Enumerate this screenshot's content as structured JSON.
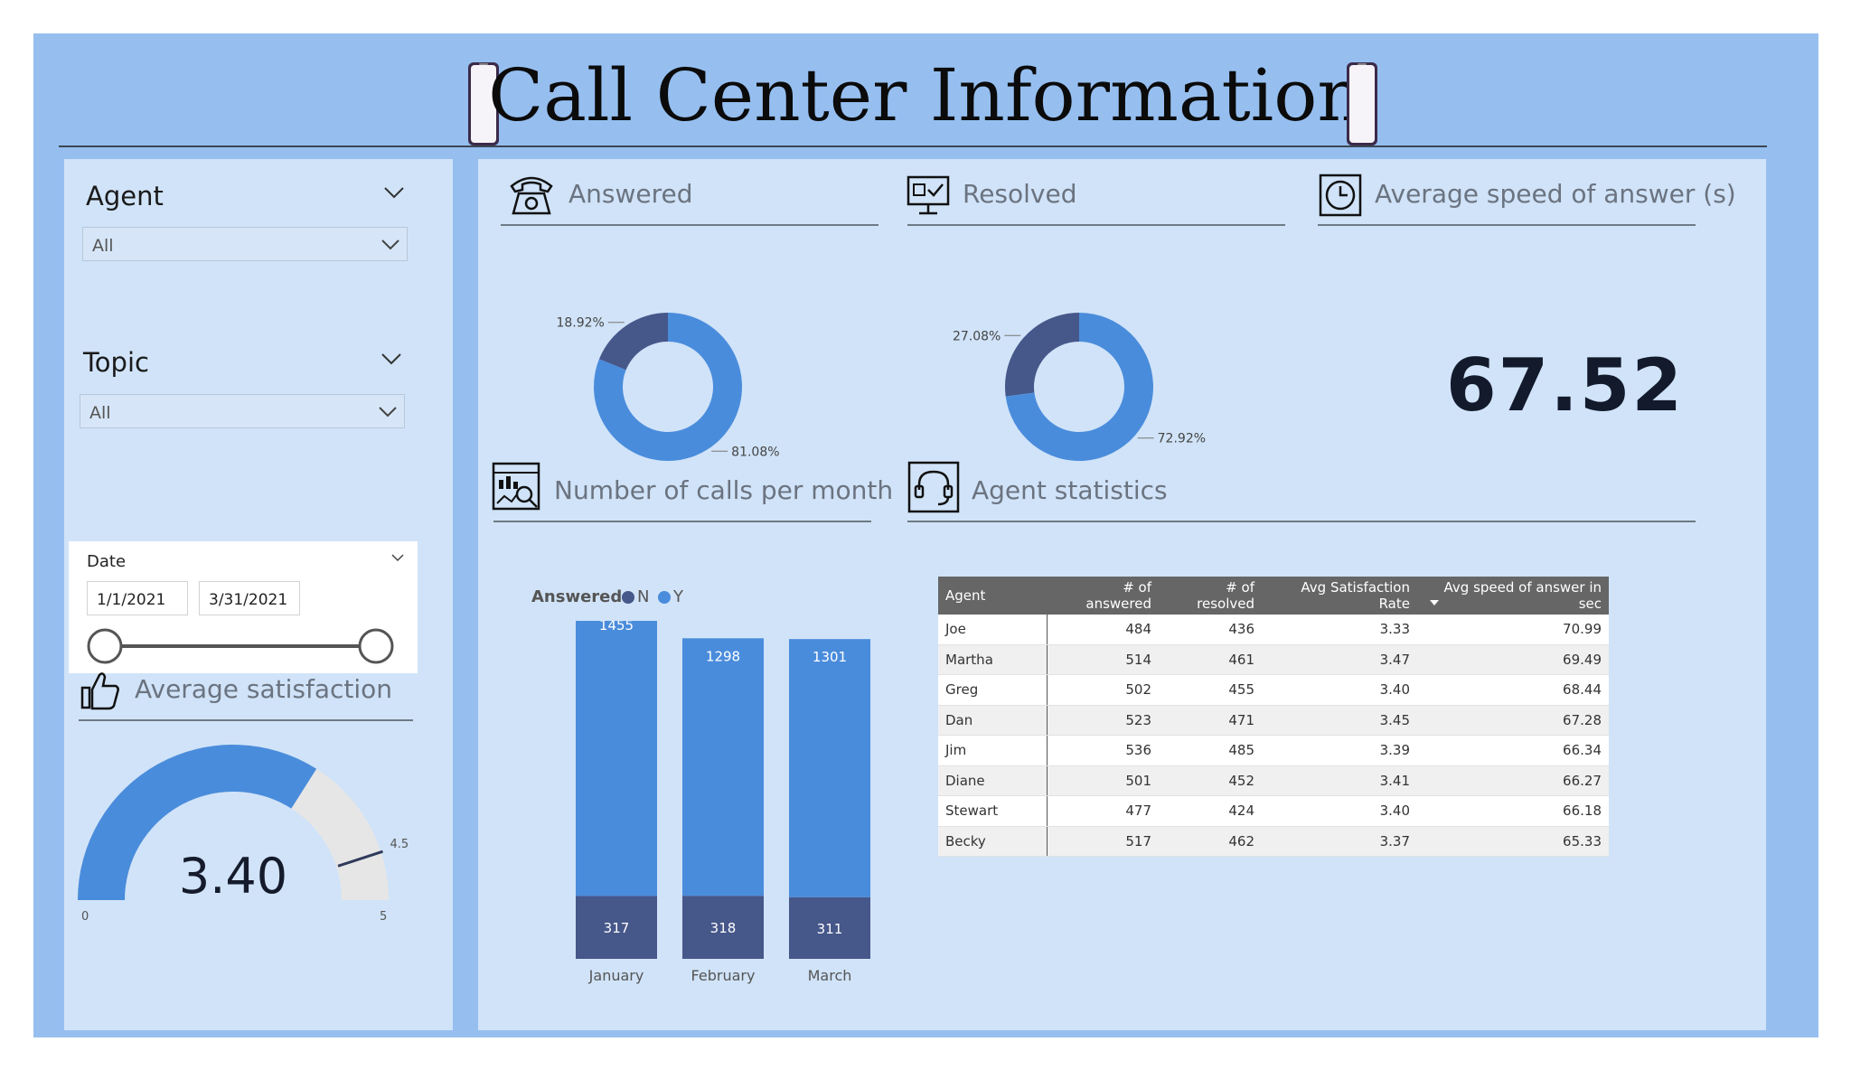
{
  "page": {
    "title": "Call Center Information"
  },
  "colors": {
    "background": "#96bff0",
    "panel": "#d0e3f8",
    "series_y": "#4a8cdc",
    "series_n": "#46578a",
    "gauge_rest": "#e6e6e6"
  },
  "slicers": {
    "agent": {
      "title": "Agent",
      "value": "All"
    },
    "topic": {
      "title": "Topic",
      "value": "All"
    },
    "date": {
      "title": "Date",
      "from": "1/1/2021",
      "to": "3/31/2021"
    }
  },
  "sections": {
    "answered": {
      "title": "Answered",
      "icon": "telephone-icon"
    },
    "resolved": {
      "title": "Resolved",
      "icon": "monitor-check-icon"
    },
    "avg_speed": {
      "title": "Average speed of answer (s)",
      "icon": "clock-icon",
      "value": "67.52"
    },
    "calls_per_month": {
      "title": "Number of calls per month",
      "icon": "analytics-icon"
    },
    "agent_stats": {
      "title": "Agent statistics",
      "icon": "headset-icon"
    },
    "avg_satisfaction": {
      "title": "Average satisfaction",
      "icon": "thumbs-up-icon"
    }
  },
  "chart_data": [
    {
      "type": "pie",
      "variant": "donut",
      "labels": [
        "N",
        "Y"
      ],
      "values": [
        18.92,
        81.08
      ],
      "value_labels": [
        "18.92%",
        "81.08%"
      ]
    },
    {
      "type": "pie",
      "variant": "donut",
      "labels": [
        "N",
        "Y"
      ],
      "values": [
        27.08,
        72.92
      ],
      "value_labels": [
        "27.08%",
        "72.92%"
      ]
    },
    {
      "type": "bar",
      "stacked": true,
      "categories": [
        "January",
        "February",
        "March"
      ],
      "legend_title": "Answered",
      "legend_position": "top-left",
      "series": [
        {
          "name": "N",
          "values": [
            317,
            318,
            311
          ]
        },
        {
          "name": "Y",
          "values": [
            1455,
            1298,
            1301
          ]
        }
      ]
    },
    {
      "type": "gauge",
      "value": 3.4,
      "value_label": "3.40",
      "min": 0,
      "max": 5,
      "target": 4.5,
      "min_label": "0",
      "max_label": "5",
      "target_label": "4.5"
    },
    {
      "type": "table",
      "columns": [
        "Agent",
        "# of answered",
        "# of resolved",
        "Avg Satisfaction Rate",
        "Avg speed of answer in sec"
      ],
      "sort": "Avg speed of answer in sec, descending",
      "rows": [
        [
          "Joe",
          "484",
          "436",
          "3.33",
          "70.99"
        ],
        [
          "Martha",
          "514",
          "461",
          "3.47",
          "69.49"
        ],
        [
          "Greg",
          "502",
          "455",
          "3.40",
          "68.44"
        ],
        [
          "Dan",
          "523",
          "471",
          "3.45",
          "67.28"
        ],
        [
          "Jim",
          "536",
          "485",
          "3.39",
          "66.34"
        ],
        [
          "Diane",
          "501",
          "452",
          "3.41",
          "66.27"
        ],
        [
          "Stewart",
          "477",
          "424",
          "3.40",
          "66.18"
        ],
        [
          "Becky",
          "517",
          "462",
          "3.37",
          "65.33"
        ]
      ]
    }
  ]
}
